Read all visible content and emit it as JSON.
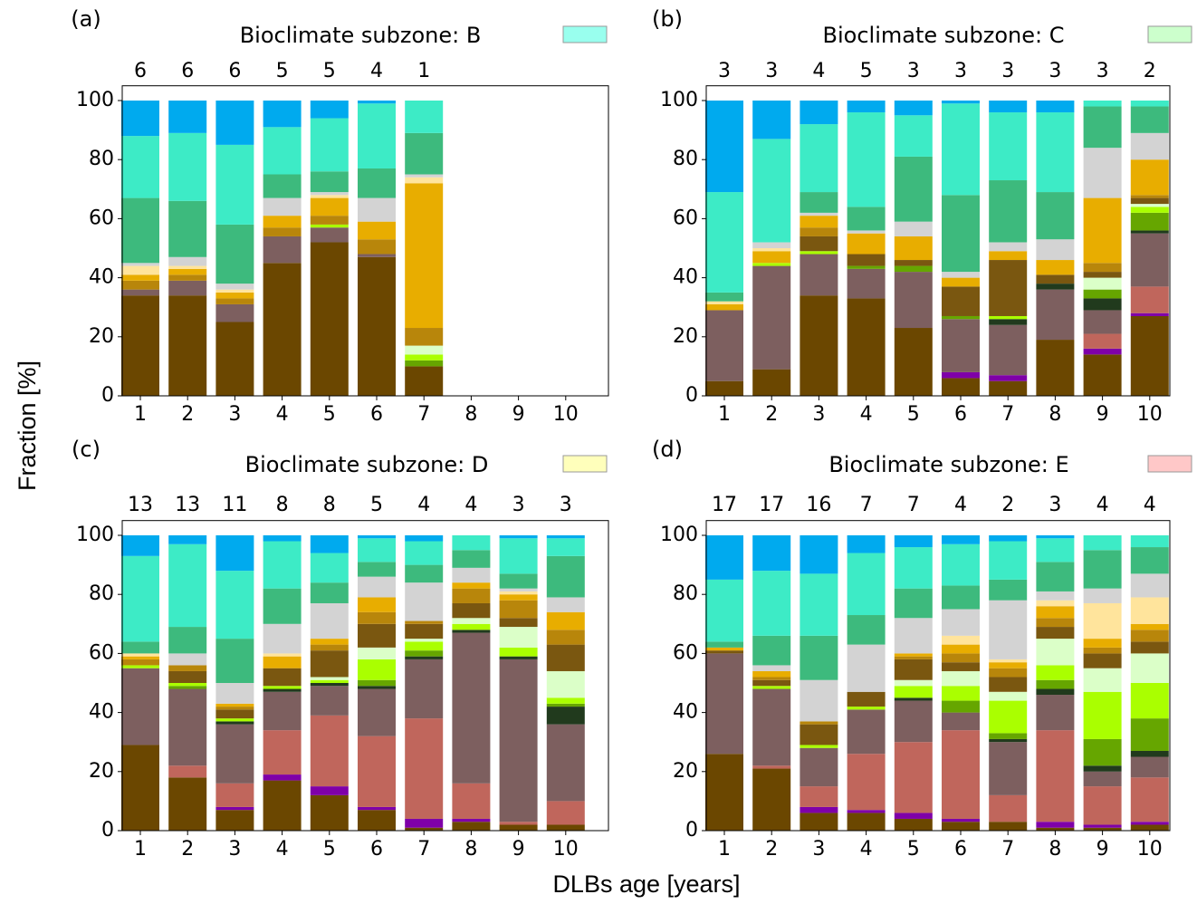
{
  "y_label": "Fraction [%]",
  "x_label": "DLBs age [years]",
  "chart_data": [
    {
      "type": "bar",
      "stacked": true,
      "panel_label": "(a)",
      "title": "Bioclimate subzone: B",
      "legend_color": "#99ffee",
      "categories": [
        1,
        2,
        3,
        4,
        5,
        6,
        7,
        8,
        9,
        10
      ],
      "counts": [
        6,
        6,
        6,
        5,
        5,
        4,
        1,
        null,
        null,
        null
      ],
      "ylim": [
        0,
        105
      ],
      "yticks": [
        0,
        20,
        40,
        60,
        80,
        100
      ],
      "series": [
        {
          "color": "#6b4700",
          "values": [
            34,
            34,
            25,
            45,
            52,
            47,
            10,
            0,
            0,
            0
          ]
        },
        {
          "color": "#7d5f5f",
          "values": [
            2,
            5,
            6,
            9,
            5,
            1,
            0,
            0,
            0,
            0
          ]
        },
        {
          "color": "#66a600",
          "values": [
            0,
            0,
            0,
            0,
            0,
            0,
            2,
            0,
            0,
            0
          ]
        },
        {
          "color": "#aaff00",
          "values": [
            0,
            0,
            0,
            0,
            1,
            0,
            2,
            0,
            0,
            0
          ]
        },
        {
          "color": "#dbffc8",
          "values": [
            0,
            0,
            0,
            0,
            0,
            0,
            3,
            0,
            0,
            0
          ]
        },
        {
          "color": "#b8860b",
          "values": [
            3,
            2,
            2,
            3,
            3,
            5,
            6,
            0,
            0,
            0
          ]
        },
        {
          "color": "#e8ad00",
          "values": [
            2,
            2,
            2,
            4,
            6,
            6,
            49,
            0,
            0,
            0
          ]
        },
        {
          "color": "#ffe49c",
          "values": [
            3,
            1,
            1,
            0,
            1,
            0,
            2,
            0,
            0,
            0
          ]
        },
        {
          "color": "#d3d3d3",
          "values": [
            1,
            3,
            2,
            6,
            1,
            8,
            1,
            0,
            0,
            0
          ]
        },
        {
          "color": "#3dba7d",
          "values": [
            22,
            19,
            20,
            8,
            7,
            10,
            14,
            0,
            0,
            0
          ]
        },
        {
          "color": "#3debc6",
          "values": [
            21,
            23,
            27,
            16,
            18,
            22,
            11,
            0,
            0,
            0
          ]
        },
        {
          "color": "#00aaee",
          "values": [
            12,
            11,
            15,
            9,
            6,
            1,
            0,
            0,
            0,
            0
          ]
        }
      ]
    },
    {
      "type": "bar",
      "stacked": true,
      "panel_label": "(b)",
      "title": "Bioclimate subzone: C",
      "legend_color": "#ccffcc",
      "categories": [
        1,
        2,
        3,
        4,
        5,
        6,
        7,
        8,
        9,
        10
      ],
      "counts": [
        3,
        3,
        4,
        5,
        3,
        3,
        3,
        3,
        3,
        2
      ],
      "ylim": [
        0,
        105
      ],
      "yticks": [
        0,
        20,
        40,
        60,
        80,
        100
      ],
      "series": [
        {
          "color": "#6b4700",
          "values": [
            5,
            9,
            34,
            33,
            23,
            6,
            5,
            19,
            14,
            27
          ]
        },
        {
          "color": "#7f00a8",
          "values": [
            0,
            0,
            0,
            0,
            0,
            2,
            2,
            0,
            2,
            1
          ]
        },
        {
          "color": "#c0665c",
          "values": [
            0,
            0,
            0,
            0,
            0,
            0,
            0,
            0,
            5,
            9
          ]
        },
        {
          "color": "#7d5f5f",
          "values": [
            24,
            35,
            14,
            10,
            19,
            18,
            17,
            17,
            8,
            18
          ]
        },
        {
          "color": "#213a1d",
          "values": [
            0,
            0,
            0,
            0,
            0,
            0,
            2,
            2,
            4,
            1
          ]
        },
        {
          "color": "#66a600",
          "values": [
            0,
            0,
            0,
            1,
            2,
            1,
            0,
            0,
            3,
            6
          ]
        },
        {
          "color": "#aaff00",
          "values": [
            0,
            1,
            1,
            0,
            0,
            0,
            1,
            0,
            0,
            2
          ]
        },
        {
          "color": "#dbffc8",
          "values": [
            0,
            0,
            0,
            0,
            0,
            0,
            0,
            0,
            4,
            1
          ]
        },
        {
          "color": "#7a5710",
          "values": [
            0,
            0,
            5,
            4,
            2,
            10,
            19,
            3,
            2,
            2
          ]
        },
        {
          "color": "#b8860b",
          "values": [
            0,
            0,
            3,
            0,
            0,
            0,
            0,
            0,
            3,
            1
          ]
        },
        {
          "color": "#e8ad00",
          "values": [
            2,
            4,
            4,
            7,
            8,
            3,
            3,
            5,
            22,
            12
          ]
        },
        {
          "color": "#ffe49c",
          "values": [
            1,
            1,
            0,
            0,
            0,
            0,
            0,
            0,
            0,
            0
          ]
        },
        {
          "color": "#d3d3d3",
          "values": [
            0,
            2,
            1,
            1,
            5,
            2,
            3,
            7,
            17,
            9
          ]
        },
        {
          "color": "#3dba7d",
          "values": [
            3,
            0,
            7,
            8,
            22,
            26,
            21,
            16,
            14,
            9
          ]
        },
        {
          "color": "#3debc6",
          "values": [
            34,
            35,
            23,
            32,
            14,
            31,
            23,
            27,
            2,
            2
          ]
        },
        {
          "color": "#00aaee",
          "values": [
            31,
            13,
            8,
            4,
            5,
            1,
            4,
            4,
            0,
            0
          ]
        }
      ]
    },
    {
      "type": "bar",
      "stacked": true,
      "panel_label": "(c)",
      "title": "Bioclimate subzone: D",
      "legend_color": "#ffffbb",
      "categories": [
        1,
        2,
        3,
        4,
        5,
        6,
        7,
        8,
        9,
        10
      ],
      "counts": [
        13,
        13,
        11,
        8,
        8,
        5,
        4,
        4,
        3,
        3
      ],
      "ylim": [
        0,
        105
      ],
      "yticks": [
        0,
        20,
        40,
        60,
        80,
        100
      ],
      "series": [
        {
          "color": "#6b4700",
          "values": [
            29,
            18,
            7,
            17,
            12,
            7,
            1,
            3,
            2,
            2
          ]
        },
        {
          "color": "#7f00a8",
          "values": [
            0,
            0,
            1,
            2,
            3,
            1,
            3,
            1,
            0,
            0
          ]
        },
        {
          "color": "#c0665c",
          "values": [
            0,
            4,
            8,
            15,
            24,
            24,
            34,
            12,
            1,
            8
          ]
        },
        {
          "color": "#7d5f5f",
          "values": [
            26,
            26,
            20,
            13,
            10,
            16,
            20,
            51,
            55,
            26
          ]
        },
        {
          "color": "#213a1d",
          "values": [
            0,
            0,
            1,
            1,
            1,
            1,
            1,
            1,
            1,
            6
          ]
        },
        {
          "color": "#66a600",
          "values": [
            0,
            1,
            0,
            0,
            0,
            2,
            2,
            0,
            0,
            1
          ]
        },
        {
          "color": "#aaff00",
          "values": [
            1,
            1,
            1,
            1,
            1,
            7,
            3,
            2,
            3,
            2
          ]
        },
        {
          "color": "#dbffc8",
          "values": [
            0,
            0,
            0,
            0,
            1,
            4,
            1,
            2,
            7,
            9
          ]
        },
        {
          "color": "#7a5710",
          "values": [
            0,
            4,
            3,
            6,
            9,
            8,
            5,
            5,
            3,
            9
          ]
        },
        {
          "color": "#b8860b",
          "values": [
            2,
            2,
            1,
            0,
            2,
            4,
            1,
            5,
            6,
            5
          ]
        },
        {
          "color": "#e8ad00",
          "values": [
            1,
            0,
            1,
            4,
            2,
            5,
            0,
            2,
            2,
            6
          ]
        },
        {
          "color": "#ffe49c",
          "values": [
            1,
            0,
            0,
            1,
            0,
            0,
            0,
            0,
            1,
            0
          ]
        },
        {
          "color": "#d3d3d3",
          "values": [
            0,
            4,
            7,
            10,
            12,
            7,
            13,
            5,
            1,
            5
          ]
        },
        {
          "color": "#3dba7d",
          "values": [
            4,
            9,
            15,
            12,
            7,
            5,
            6,
            6,
            5,
            14
          ]
        },
        {
          "color": "#3debc6",
          "values": [
            29,
            28,
            23,
            16,
            10,
            8,
            8,
            5,
            12,
            6
          ]
        },
        {
          "color": "#00aaee",
          "values": [
            7,
            3,
            12,
            2,
            6,
            1,
            2,
            0,
            1,
            1
          ]
        }
      ]
    },
    {
      "type": "bar",
      "stacked": true,
      "panel_label": "(d)",
      "title": "Bioclimate subzone: E",
      "legend_color": "#ffc8c8",
      "categories": [
        1,
        2,
        3,
        4,
        5,
        6,
        7,
        8,
        9,
        10
      ],
      "counts": [
        17,
        17,
        16,
        7,
        7,
        4,
        2,
        3,
        4,
        4
      ],
      "ylim": [
        0,
        105
      ],
      "yticks": [
        0,
        20,
        40,
        60,
        80,
        100
      ],
      "series": [
        {
          "color": "#6b4700",
          "values": [
            26,
            21,
            6,
            6,
            4,
            3,
            3,
            1,
            1,
            2
          ]
        },
        {
          "color": "#7f00a8",
          "values": [
            0,
            0,
            2,
            1,
            2,
            1,
            0,
            2,
            1,
            1
          ]
        },
        {
          "color": "#c0665c",
          "values": [
            0,
            1,
            7,
            19,
            24,
            30,
            9,
            31,
            13,
            15
          ]
        },
        {
          "color": "#7d5f5f",
          "values": [
            34,
            26,
            13,
            15,
            14,
            6,
            18,
            12,
            5,
            7
          ]
        },
        {
          "color": "#213a1d",
          "values": [
            0,
            0,
            0,
            0,
            1,
            0,
            1,
            2,
            2,
            2
          ]
        },
        {
          "color": "#66a600",
          "values": [
            0,
            0,
            0,
            0,
            0,
            4,
            2,
            3,
            9,
            11
          ]
        },
        {
          "color": "#aaff00",
          "values": [
            0,
            1,
            1,
            1,
            4,
            5,
            11,
            5,
            16,
            12
          ]
        },
        {
          "color": "#dbffc8",
          "values": [
            0,
            0,
            0,
            0,
            2,
            5,
            3,
            9,
            8,
            10
          ]
        },
        {
          "color": "#7a5710",
          "values": [
            1,
            2,
            7,
            5,
            7,
            3,
            5,
            4,
            5,
            4
          ]
        },
        {
          "color": "#b8860b",
          "values": [
            0,
            1,
            1,
            0,
            1,
            3,
            3,
            3,
            2,
            4
          ]
        },
        {
          "color": "#e8ad00",
          "values": [
            1,
            2,
            0,
            0,
            1,
            3,
            2,
            4,
            3,
            2
          ]
        },
        {
          "color": "#ffe49c",
          "values": [
            0,
            0,
            0,
            0,
            0,
            3,
            1,
            2,
            12,
            9
          ]
        },
        {
          "color": "#d3d3d3",
          "values": [
            0,
            2,
            14,
            16,
            12,
            9,
            20,
            3,
            5,
            8
          ]
        },
        {
          "color": "#3dba7d",
          "values": [
            2,
            10,
            15,
            10,
            10,
            8,
            7,
            10,
            13,
            9
          ]
        },
        {
          "color": "#3debc6",
          "values": [
            21,
            22,
            21,
            21,
            14,
            14,
            13,
            8,
            5,
            4
          ]
        },
        {
          "color": "#00aaee",
          "values": [
            15,
            12,
            13,
            6,
            4,
            3,
            2,
            1,
            0,
            0
          ]
        }
      ]
    }
  ]
}
